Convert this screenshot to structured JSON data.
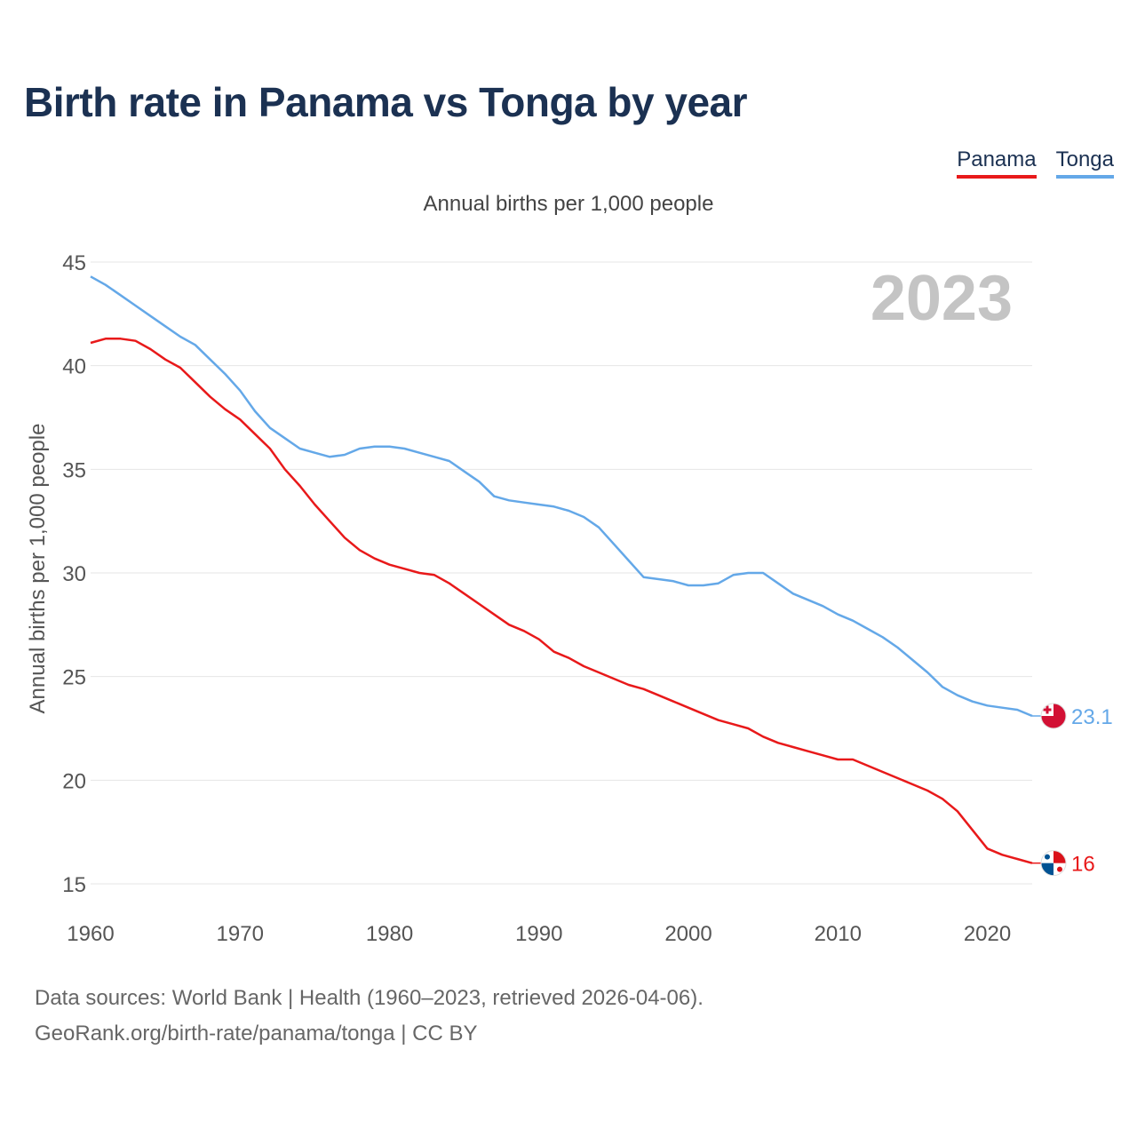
{
  "title": "Birth rate in Panama vs Tonga by year",
  "subtitle": "Annual births per 1,000 people",
  "legend": [
    "Panama",
    "Tonga"
  ],
  "year_label": "2023",
  "footer": {
    "line1": "Data sources: World Bank | Health (1960–2023, retrieved 2026-04-06).",
    "line2": "GeoRank.org/birth-rate/panama/tonga | CC BY"
  },
  "colors": {
    "panama": "#e8191a",
    "tonga": "#64a8e8",
    "grid": "#e6e6e6",
    "tick": "#555555",
    "year": "#c4c4c4"
  },
  "chart_data": {
    "type": "line",
    "title": "Birth rate in Panama vs Tonga by year",
    "xlabel": "",
    "ylabel": "Annual births per 1,000 people",
    "xlim": [
      1960,
      2023
    ],
    "ylim": [
      15,
      45
    ],
    "yticks": [
      15,
      20,
      25,
      30,
      35,
      40,
      45
    ],
    "xticks": [
      1960,
      1970,
      1980,
      1990,
      2000,
      2010,
      2020
    ],
    "grid": true,
    "legend_position": "top-right",
    "x": [
      1960,
      1961,
      1962,
      1963,
      1964,
      1965,
      1966,
      1967,
      1968,
      1969,
      1970,
      1971,
      1972,
      1973,
      1974,
      1975,
      1976,
      1977,
      1978,
      1979,
      1980,
      1981,
      1982,
      1983,
      1984,
      1985,
      1986,
      1987,
      1988,
      1989,
      1990,
      1991,
      1992,
      1993,
      1994,
      1995,
      1996,
      1997,
      1998,
      1999,
      2000,
      2001,
      2002,
      2003,
      2004,
      2005,
      2006,
      2007,
      2008,
      2009,
      2010,
      2011,
      2012,
      2013,
      2014,
      2015,
      2016,
      2017,
      2018,
      2019,
      2020,
      2021,
      2022,
      2023
    ],
    "series": [
      {
        "name": "Panama",
        "color": "#e8191a",
        "end_label": "16",
        "flag": "panama-flag",
        "values": [
          41.1,
          41.3,
          41.3,
          41.2,
          40.8,
          40.3,
          39.9,
          39.2,
          38.5,
          37.9,
          37.4,
          36.7,
          36.0,
          35.0,
          34.2,
          33.3,
          32.5,
          31.7,
          31.1,
          30.7,
          30.4,
          30.2,
          30.0,
          29.9,
          29.5,
          29.0,
          28.5,
          28.0,
          27.5,
          27.2,
          26.8,
          26.2,
          25.9,
          25.5,
          25.2,
          24.9,
          24.6,
          24.4,
          24.1,
          23.8,
          23.5,
          23.2,
          22.9,
          22.7,
          22.5,
          22.1,
          21.8,
          21.6,
          21.4,
          21.2,
          21.0,
          21.0,
          20.7,
          20.4,
          20.1,
          19.8,
          19.5,
          19.1,
          18.5,
          17.6,
          16.7,
          16.4,
          16.2,
          16.0
        ]
      },
      {
        "name": "Tonga",
        "color": "#64a8e8",
        "end_label": "23.1",
        "flag": "tonga-flag",
        "values": [
          44.3,
          43.9,
          43.4,
          42.9,
          42.4,
          41.9,
          41.4,
          41.0,
          40.3,
          39.6,
          38.8,
          37.8,
          37.0,
          36.5,
          36.0,
          35.8,
          35.6,
          35.7,
          36.0,
          36.1,
          36.1,
          36.0,
          35.8,
          35.6,
          35.4,
          34.9,
          34.4,
          33.7,
          33.5,
          33.4,
          33.3,
          33.2,
          33.0,
          32.7,
          32.2,
          31.4,
          30.6,
          29.8,
          29.7,
          29.6,
          29.4,
          29.4,
          29.5,
          29.9,
          30.0,
          30.0,
          29.5,
          29.0,
          28.7,
          28.4,
          28.0,
          27.7,
          27.3,
          26.9,
          26.4,
          25.8,
          25.2,
          24.5,
          24.1,
          23.8,
          23.6,
          23.5,
          23.4,
          23.1
        ]
      }
    ]
  }
}
